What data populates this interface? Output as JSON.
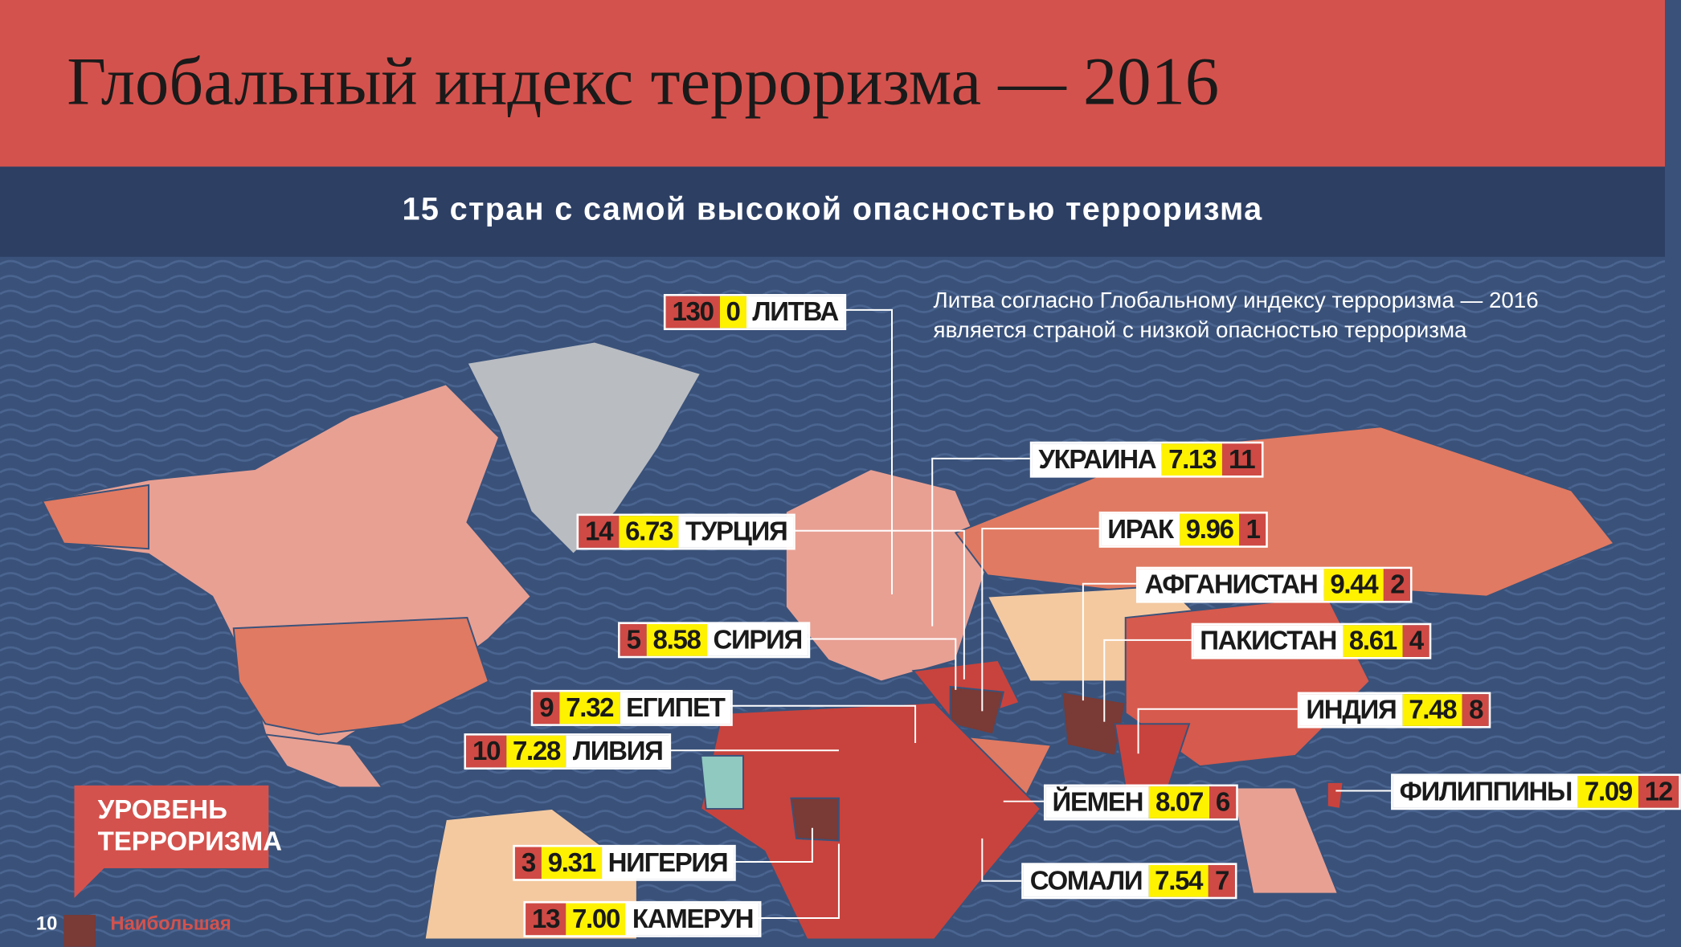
{
  "header": {
    "title": "Глобальный индекс терроризма — 2016"
  },
  "subtitle": "15 стран с самой высокой опасностью терроризма",
  "note": [
    "Литва согласно Глобальному индексу терроризма — 2016",
    "является страной с низкой опасностью терроризма"
  ],
  "countries": [
    {
      "name": "ЛИТВА",
      "score": "0",
      "rank": 130
    },
    {
      "name": "УКРАИНА",
      "score": "7.13",
      "rank": 11
    },
    {
      "name": "ТУРЦИЯ",
      "score": "6.73",
      "rank": 14
    },
    {
      "name": "ИРАК",
      "score": "9.96",
      "rank": 1
    },
    {
      "name": "АФГАНИСТАН",
      "score": "9.44",
      "rank": 2
    },
    {
      "name": "СИРИЯ",
      "score": "8.58",
      "rank": 5
    },
    {
      "name": "ПАКИСТАН",
      "score": "8.61",
      "rank": 4
    },
    {
      "name": "ЕГИПЕТ",
      "score": "7.32",
      "rank": 9
    },
    {
      "name": "ИНДИЯ",
      "score": "7.48",
      "rank": 8
    },
    {
      "name": "ЛИВИЯ",
      "score": "7.28",
      "rank": 10
    },
    {
      "name": "ФИЛИППИНЫ",
      "score": "7.09",
      "rank": 12
    },
    {
      "name": "ЙЕМЕН",
      "score": "8.07",
      "rank": 6
    },
    {
      "name": "НИГЕРИЯ",
      "score": "9.31",
      "rank": 3
    },
    {
      "name": "СОМАЛИ",
      "score": "7.54",
      "rank": 7
    },
    {
      "name": "КАМЕРУН",
      "score": "7.00",
      "rank": 13
    }
  ],
  "legend": {
    "title": [
      "УРОВЕНЬ",
      "ТЕРРОРИЗМА"
    ],
    "scale_value": 10,
    "scale_label": "Наибольшая"
  }
}
